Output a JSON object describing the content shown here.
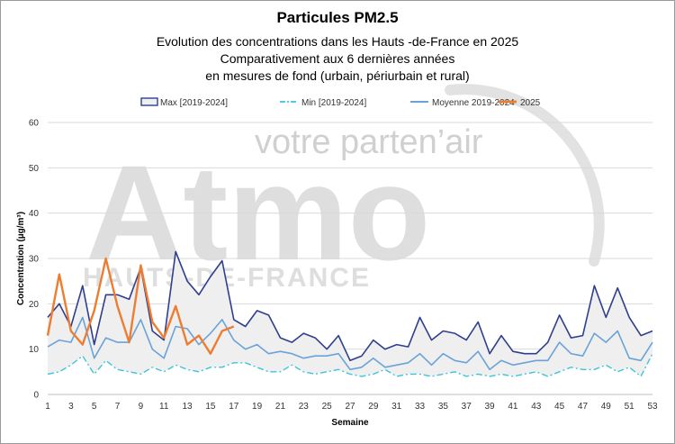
{
  "chart_data": {
    "type": "line",
    "title": "Particules PM2.5",
    "subtitle_lines": [
      "Evolution des concentrations dans les Hauts -de-France en 2025",
      "Comparativement aux 6 dernières années",
      "en mesures de fond (urbain, périurbain et rural)"
    ],
    "xlabel": "Semaine",
    "ylabel": "Concentration (µg/m³)",
    "xlim": [
      1,
      53
    ],
    "ylim": [
      0,
      60
    ],
    "x_ticks": [
      1,
      3,
      5,
      7,
      9,
      11,
      13,
      15,
      17,
      19,
      21,
      23,
      25,
      27,
      29,
      31,
      33,
      35,
      37,
      39,
      41,
      43,
      45,
      47,
      49,
      51,
      53
    ],
    "y_ticks": [
      0,
      10,
      20,
      30,
      40,
      50,
      60
    ],
    "grid": true,
    "legend_position": "top",
    "watermark": {
      "line1": "votre parten’air",
      "line2": "Atmo",
      "line3": "HAUTS-DE-FRANCE"
    },
    "series": [
      {
        "name": "Max [2019-2024]",
        "color": "#2f3f8f",
        "style": "solid",
        "values": [
          17,
          20,
          15,
          24,
          11,
          22,
          22,
          21,
          28,
          14,
          12,
          31.5,
          25,
          22,
          26,
          29.5,
          16.5,
          15,
          18.5,
          17.5,
          12.5,
          11.5,
          13.5,
          12.5,
          10,
          13,
          7.5,
          8.5,
          12,
          10,
          11,
          10.5,
          17,
          12,
          14,
          13.5,
          12,
          16,
          9,
          13,
          9.5,
          9,
          9,
          11.5,
          17.5,
          12.5,
          13,
          24,
          17,
          23.5,
          17,
          13,
          14
        ]
      },
      {
        "name": "Min [2019-2024]",
        "color": "#3fc4d9",
        "style": "dash-dot",
        "values": [
          4.5,
          5,
          6.5,
          8.5,
          4.5,
          7.5,
          5.5,
          5,
          4.5,
          6,
          5,
          6.5,
          5.5,
          5,
          6,
          6,
          7,
          7,
          6,
          5,
          5,
          6.5,
          5,
          4.5,
          5,
          5.5,
          4.5,
          4,
          4.5,
          5.5,
          4,
          4.5,
          4.5,
          4,
          4.5,
          5,
          4,
          4.5,
          4,
          4.5,
          4,
          4.5,
          5,
          4,
          5,
          6,
          5.5,
          5.5,
          6.5,
          5,
          6,
          4,
          9
        ]
      },
      {
        "name": "Moyenne 2019-2024",
        "color": "#6aa3d8",
        "style": "solid",
        "values": [
          10.5,
          12,
          11.5,
          17,
          8,
          12.5,
          11.5,
          11.5,
          16.5,
          10,
          8,
          15,
          14.5,
          11,
          13.5,
          16.5,
          12,
          10,
          11,
          9,
          9.5,
          9,
          8,
          8.5,
          8.5,
          9,
          5.5,
          6,
          8,
          6,
          6.5,
          7,
          9,
          6.5,
          9,
          7.5,
          7,
          9.5,
          5.5,
          7.5,
          6.5,
          7,
          7.5,
          7.5,
          11.5,
          9,
          8.5,
          13.5,
          11.5,
          14,
          8,
          7.5,
          11.5
        ]
      },
      {
        "name": "2025",
        "color": "#ed7d31",
        "style": "solid",
        "values": [
          13,
          26.5,
          14,
          11,
          18.5,
          30,
          19.5,
          11.5,
          28.5,
          16,
          12.5,
          19.5,
          11,
          13,
          9,
          14,
          15
        ]
      }
    ]
  }
}
